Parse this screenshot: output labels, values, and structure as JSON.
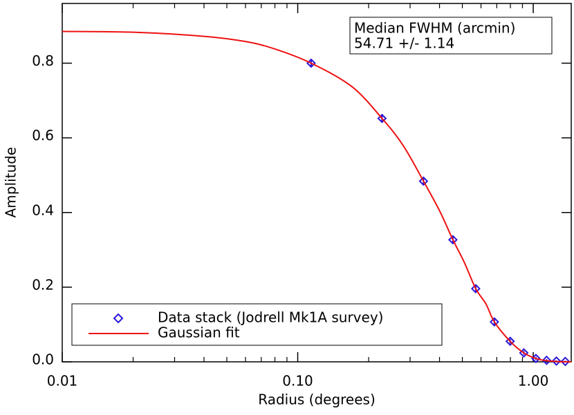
{
  "chart_data": {
    "type": "scatter",
    "x_label": "Radius (degrees)",
    "y_label": "Amplitude",
    "log_x": true,
    "xlim": [
      0.01,
      1.45
    ],
    "ylim": [
      0,
      0.96
    ],
    "xticks": [
      {
        "value": 0.01,
        "label": "0.01"
      },
      {
        "value": 0.1,
        "label": "0.10"
      },
      {
        "value": 1,
        "label": "1.00"
      }
    ],
    "xminor_ticks": [
      0.02,
      0.03,
      0.04,
      0.05,
      0.06,
      0.07,
      0.08,
      0.09,
      0.2,
      0.3,
      0.4,
      0.5,
      0.6,
      0.7,
      0.8,
      0.9
    ],
    "yticks": [
      {
        "value": 0,
        "label": "0.0"
      },
      0.2,
      0.4,
      0.6,
      0.8
    ],
    "series": [
      {
        "name": "Data stack (Jodrell Mk1A survey)",
        "color": "#2a16d8",
        "marker": "diamond",
        "x": [
          0.114,
          0.228,
          0.342,
          0.456,
          0.57,
          0.684,
          0.798,
          0.912,
          1.026,
          1.14,
          1.254,
          1.368
        ],
        "values": [
          0.8,
          0.652,
          0.484,
          0.327,
          0.196,
          0.107,
          0.055,
          0.024,
          0.009,
          0.004,
          0.002,
          0.001
        ],
        "errors": [
          0.008,
          0.01,
          0.01,
          0.01,
          0.008,
          0.007,
          0.006,
          0.005,
          0.004,
          0.003,
          0.002,
          0.002
        ]
      },
      {
        "name": "Gaussian fit",
        "color": "#ee1111",
        "marker": "line",
        "x": [
          0.01,
          0.02,
          0.04,
          0.06,
          0.08,
          0.114,
          0.17,
          0.228,
          0.28,
          0.342,
          0.4,
          0.456,
          0.51,
          0.57,
          0.63,
          0.684,
          0.798,
          0.912,
          1.026,
          1.14,
          1.254,
          1.368,
          1.45
        ],
        "values": [
          0.885,
          0.883,
          0.872,
          0.858,
          0.838,
          0.8,
          0.737,
          0.652,
          0.58,
          0.484,
          0.405,
          0.327,
          0.266,
          0.196,
          0.155,
          0.107,
          0.055,
          0.024,
          0.009,
          0.003,
          0.001,
          0.0,
          0.0
        ]
      }
    ],
    "annotation": {
      "title": "Median FWHM (arcmin)",
      "text": "54.71 +/- 1.14"
    }
  }
}
